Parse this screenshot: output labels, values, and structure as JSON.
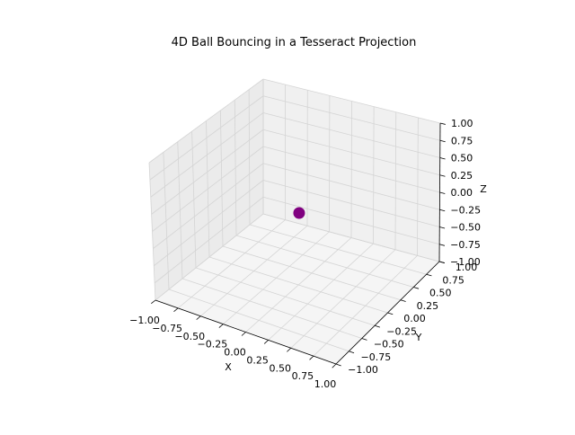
{
  "chart_data": {
    "type": "scatter",
    "projection": "3d",
    "title": "4D Ball Bouncing in a Tesseract Projection",
    "xlabel": "X",
    "ylabel": "Y",
    "zlabel": "Z",
    "xlim": [
      -1.0,
      1.0
    ],
    "ylim": [
      -1.0,
      1.0
    ],
    "zlim": [
      -1.0,
      1.0
    ],
    "xticks": [
      -1.0,
      -0.75,
      -0.5,
      -0.25,
      0.0,
      0.25,
      0.5,
      0.75,
      1.0
    ],
    "yticks": [
      -1.0,
      -0.75,
      -0.5,
      -0.25,
      0.0,
      0.25,
      0.5,
      0.75,
      1.0
    ],
    "zticks": [
      -1.0,
      -0.75,
      -0.5,
      -0.25,
      0.0,
      0.25,
      0.5,
      0.75,
      1.0
    ],
    "xtick_labels": [
      "−1.00",
      "−0.75",
      "−0.50",
      "−0.25",
      "0.00",
      "0.25",
      "0.50",
      "0.75",
      "1.00"
    ],
    "ytick_labels": [
      "−1.00",
      "−0.75",
      "−0.50",
      "−0.25",
      "0.00",
      "0.25",
      "0.50",
      "0.75",
      "1.00"
    ],
    "ztick_labels": [
      "−1.00",
      "−0.75",
      "−0.50",
      "−0.25",
      "0.00",
      "0.25",
      "0.50",
      "0.75",
      "1.00"
    ],
    "grid": true,
    "series": [
      {
        "points": [
          {
            "x": -0.27,
            "y": 0.47,
            "z": -0.38
          }
        ],
        "color": "#800080",
        "marker": "circle"
      }
    ],
    "pane_colors": {
      "x": "#ebebeb",
      "y": "#f0f0f0",
      "z": "#f5f5f5"
    }
  }
}
